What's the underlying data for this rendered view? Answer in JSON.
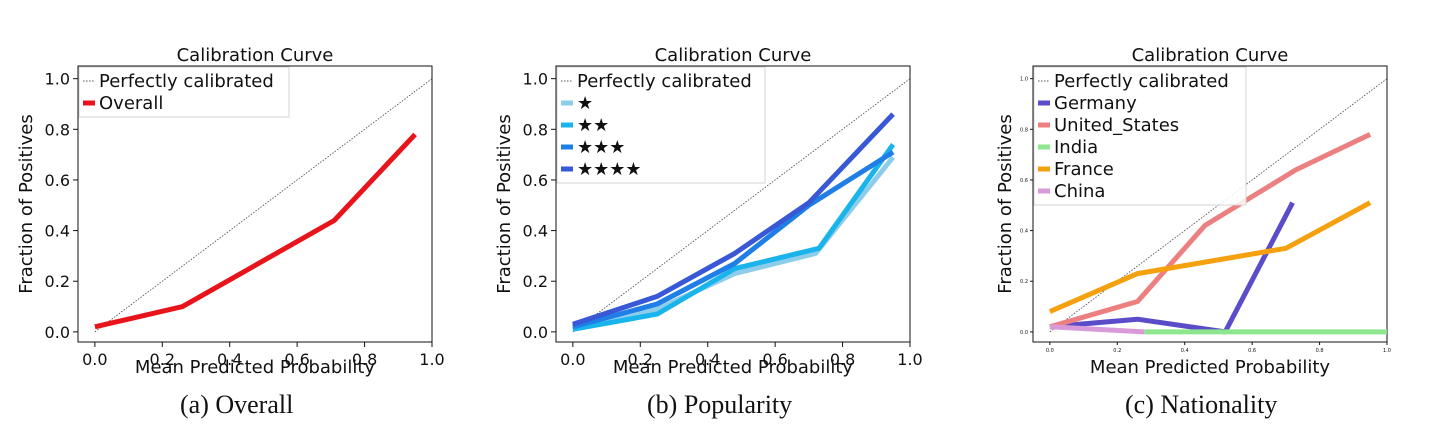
{
  "chart_data": [
    {
      "type": "line",
      "title": "Calibration Curve",
      "xlabel": "Mean Predicted Probability",
      "ylabel": "Fraction of Positives",
      "xlim": [
        -0.05,
        1.0
      ],
      "ylim": [
        -0.04,
        1.05
      ],
      "xticks": [
        "0.0",
        "0.2",
        "0.4",
        "0.6",
        "0.8",
        "1.0"
      ],
      "yticks": [
        "0.0",
        "0.2",
        "0.4",
        "0.6",
        "0.8",
        "1.0"
      ],
      "tick_size": "large",
      "grid": false,
      "legend_position": "top-left",
      "reference": {
        "name": "Perfectly calibrated",
        "color": "#555555",
        "x": [
          0,
          1
        ],
        "y": [
          0,
          1
        ]
      },
      "series": [
        {
          "name": "Overall",
          "color": "#e8141b",
          "x": [
            0.0,
            0.26,
            0.71,
            0.95
          ],
          "y": [
            0.02,
            0.1,
            0.44,
            0.78
          ]
        }
      ],
      "caption": "(a) Overall"
    },
    {
      "type": "line",
      "title": "Calibration Curve",
      "xlabel": "Mean Predicted Probability",
      "ylabel": "Fraction of Positives",
      "xlim": [
        -0.05,
        1.0
      ],
      "ylim": [
        -0.04,
        1.05
      ],
      "xticks": [
        "0.0",
        "0.2",
        "0.4",
        "0.6",
        "0.8",
        "1.0"
      ],
      "yticks": [
        "0.0",
        "0.2",
        "0.4",
        "0.6",
        "0.8",
        "1.0"
      ],
      "tick_size": "large",
      "grid": false,
      "legend_position": "top-left",
      "reference": {
        "name": "Perfectly calibrated",
        "color": "#555555",
        "x": [
          0,
          1
        ],
        "y": [
          0,
          1
        ]
      },
      "series": [
        {
          "name": "★",
          "color": "#8ecdea",
          "x": [
            0.0,
            0.25,
            0.48,
            0.72,
            0.95
          ],
          "y": [
            0.01,
            0.09,
            0.23,
            0.31,
            0.69
          ]
        },
        {
          "name": "★★",
          "color": "#19b4eb",
          "x": [
            0.0,
            0.25,
            0.48,
            0.73,
            0.95
          ],
          "y": [
            0.01,
            0.07,
            0.25,
            0.33,
            0.74
          ]
        },
        {
          "name": "★★★",
          "color": "#1f7fe6",
          "x": [
            0.0,
            0.25,
            0.48,
            0.7,
            0.95
          ],
          "y": [
            0.02,
            0.11,
            0.27,
            0.5,
            0.71
          ]
        },
        {
          "name": "★★★★",
          "color": "#3858d6",
          "x": [
            0.0,
            0.25,
            0.48,
            0.7,
            0.95
          ],
          "y": [
            0.03,
            0.14,
            0.31,
            0.51,
            0.86
          ]
        }
      ],
      "caption": "(b) Popularity"
    },
    {
      "type": "line",
      "title": "Calibration Curve",
      "xlabel": "Mean Predicted Probability",
      "ylabel": "Fraction of Positives",
      "xlim": [
        -0.05,
        1.0
      ],
      "ylim": [
        -0.04,
        1.05
      ],
      "xticks": [
        "0.0",
        "0.2",
        "0.4",
        "0.6",
        "0.8",
        "1.0"
      ],
      "yticks": [
        "0.0",
        "0.2",
        "0.4",
        "0.6",
        "0.8",
        "1.0"
      ],
      "tick_size": "tiny",
      "grid": false,
      "legend_position": "top-left",
      "reference": {
        "name": "Perfectly calibrated",
        "color": "#555555",
        "x": [
          0,
          1
        ],
        "y": [
          0,
          1
        ]
      },
      "series": [
        {
          "name": "Germany",
          "color": "#5b4cc9",
          "x": [
            0.0,
            0.26,
            0.52,
            0.72
          ],
          "y": [
            0.02,
            0.05,
            0.0,
            0.51
          ]
        },
        {
          "name": "United_States",
          "color": "#ec8080",
          "x": [
            0.0,
            0.26,
            0.46,
            0.73,
            0.95
          ],
          "y": [
            0.02,
            0.12,
            0.42,
            0.64,
            0.78
          ]
        },
        {
          "name": "India",
          "color": "#8ee68e",
          "x": [
            0.28,
            1.0
          ],
          "y": [
            0.0,
            0.0
          ]
        },
        {
          "name": "France",
          "color": "#f5a10f",
          "x": [
            0.0,
            0.26,
            0.7,
            0.95
          ],
          "y": [
            0.08,
            0.23,
            0.33,
            0.51
          ]
        },
        {
          "name": "China",
          "color": "#d99ad9",
          "x": [
            0.0,
            0.28
          ],
          "y": [
            0.02,
            0.0
          ]
        }
      ],
      "caption": "(c) Nationality"
    }
  ]
}
